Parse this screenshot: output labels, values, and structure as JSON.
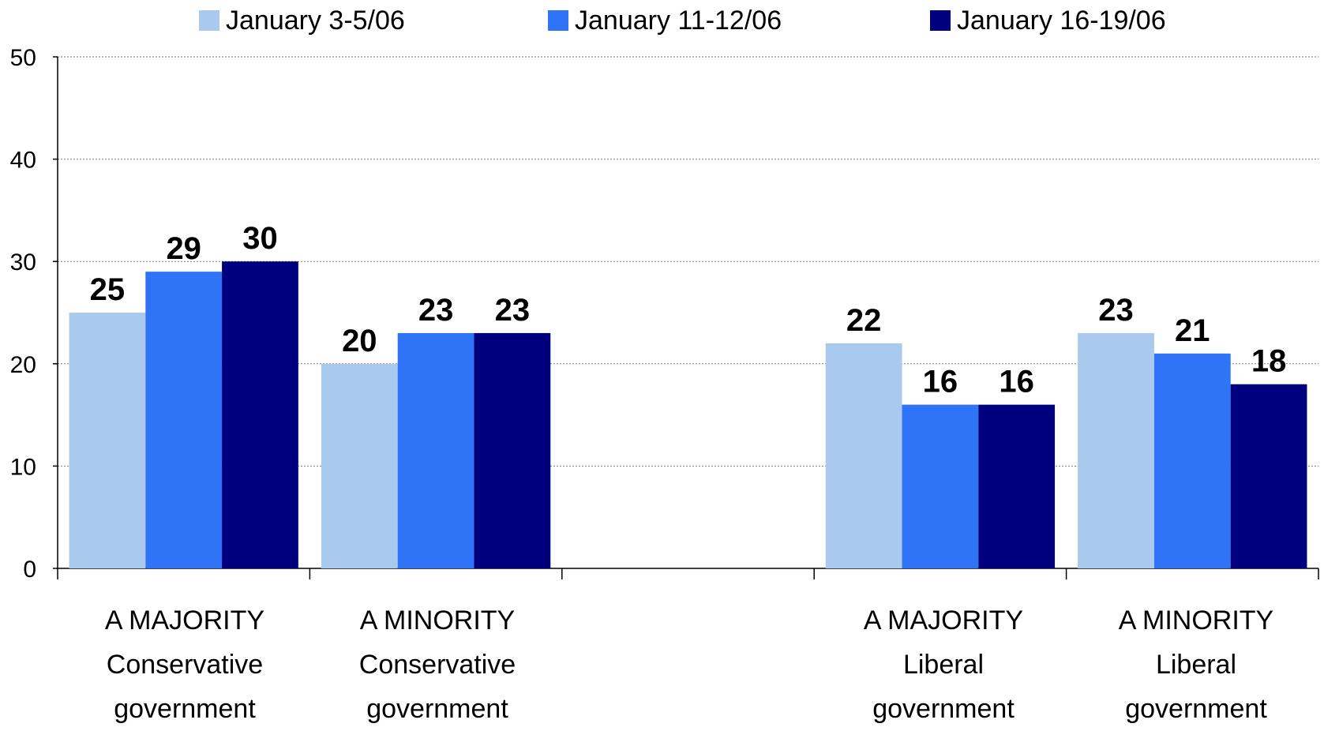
{
  "chart_data": {
    "type": "bar",
    "categories": [
      [
        "A MAJORITY",
        "Conservative",
        "government"
      ],
      [
        "A MINORITY",
        "Conservative",
        "government"
      ],
      [
        "",
        "",
        ""
      ],
      [
        "A MAJORITY",
        "Liberal",
        "government"
      ],
      [
        "A MINORITY",
        "Liberal",
        "government"
      ]
    ],
    "series": [
      {
        "name": "January 3-5/06",
        "color": "#a9c9ef",
        "values": [
          25,
          20,
          null,
          22,
          23
        ]
      },
      {
        "name": "January 11-12/06",
        "color": "#2f73f6",
        "values": [
          29,
          23,
          null,
          16,
          21
        ]
      },
      {
        "name": "January 16-19/06",
        "color": "#00007f",
        "values": [
          30,
          23,
          null,
          16,
          18
        ]
      }
    ],
    "yticks": [
      "0",
      "10",
      "20",
      "30",
      "40",
      "50"
    ],
    "ylim": [
      0,
      50
    ],
    "grid": true,
    "legend": "top",
    "data_labels": true
  }
}
